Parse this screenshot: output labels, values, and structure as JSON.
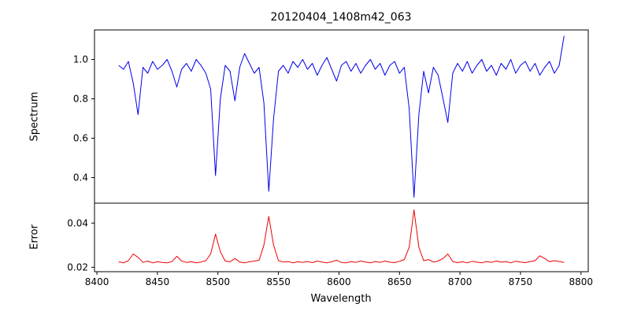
{
  "chart_data": {
    "type": "line",
    "title": "20120404_1408m42_063",
    "xlabel": "Wavelength",
    "xlim": [
      8398,
      8806
    ],
    "xticks": [
      8400,
      8450,
      8500,
      8550,
      8600,
      8650,
      8700,
      8750,
      8800
    ],
    "xticklabels": [
      "8400",
      "8450",
      "8500",
      "8550",
      "8600",
      "8650",
      "8700",
      "8750",
      "8800"
    ],
    "grid": false,
    "legend": "none",
    "x": [
      8418,
      8422,
      8426,
      8430,
      8434,
      8438,
      8442,
      8446,
      8450,
      8454,
      8458,
      8462,
      8466,
      8470,
      8474,
      8478,
      8482,
      8486,
      8490,
      8494,
      8498,
      8502,
      8506,
      8510,
      8514,
      8518,
      8522,
      8526,
      8530,
      8534,
      8538,
      8542,
      8546,
      8550,
      8554,
      8558,
      8562,
      8566,
      8570,
      8574,
      8578,
      8582,
      8586,
      8590,
      8594,
      8598,
      8602,
      8606,
      8610,
      8614,
      8618,
      8622,
      8626,
      8630,
      8634,
      8638,
      8642,
      8646,
      8650,
      8654,
      8658,
      8662,
      8666,
      8670,
      8674,
      8678,
      8682,
      8686,
      8690,
      8694,
      8698,
      8702,
      8706,
      8710,
      8714,
      8718,
      8722,
      8726,
      8730,
      8734,
      8738,
      8742,
      8746,
      8750,
      8754,
      8758,
      8762,
      8766,
      8770,
      8774,
      8778,
      8782,
      8786
    ],
    "panels": [
      {
        "ylabel": "Spectrum",
        "ylim": [
          0.27,
          1.15
        ],
        "yticks": [
          0.4,
          0.6,
          0.8,
          1.0
        ],
        "yticklabels": [
          "0.4",
          "0.6",
          "0.8",
          "1.0"
        ],
        "series": [
          {
            "name": "spectrum",
            "color": "#0000ee",
            "values": [
              0.97,
              0.95,
              0.99,
              0.88,
              0.72,
              0.96,
              0.93,
              0.99,
              0.95,
              0.97,
              1.0,
              0.94,
              0.86,
              0.95,
              0.98,
              0.94,
              1.0,
              0.97,
              0.93,
              0.85,
              0.41,
              0.8,
              0.97,
              0.94,
              0.79,
              0.96,
              1.03,
              0.98,
              0.93,
              0.96,
              0.78,
              0.33,
              0.7,
              0.94,
              0.97,
              0.93,
              0.99,
              0.96,
              1.0,
              0.95,
              0.98,
              0.92,
              0.97,
              1.01,
              0.95,
              0.89,
              0.97,
              0.99,
              0.94,
              0.98,
              0.93,
              0.97,
              1.0,
              0.95,
              0.98,
              0.92,
              0.97,
              0.99,
              0.93,
              0.96,
              0.75,
              0.3,
              0.72,
              0.94,
              0.83,
              0.96,
              0.92,
              0.8,
              0.68,
              0.93,
              0.98,
              0.94,
              0.99,
              0.93,
              0.97,
              1.0,
              0.94,
              0.97,
              0.92,
              0.98,
              0.95,
              1.0,
              0.93,
              0.97,
              0.99,
              0.94,
              0.98,
              0.92,
              0.96,
              0.99,
              0.93,
              0.97,
              1.12
            ]
          }
        ]
      },
      {
        "ylabel": "Error",
        "ylim": [
          0.018,
          0.049
        ],
        "yticks": [
          0.02,
          0.04
        ],
        "yticklabels": [
          "0.02",
          "0.04"
        ],
        "series": [
          {
            "name": "error",
            "color": "#ee0000",
            "values": [
              0.0225,
              0.022,
              0.023,
              0.026,
              0.0245,
              0.0222,
              0.0228,
              0.022,
              0.0225,
              0.0222,
              0.022,
              0.0226,
              0.025,
              0.0228,
              0.0222,
              0.0225,
              0.022,
              0.0224,
              0.023,
              0.026,
              0.035,
              0.027,
              0.0228,
              0.0225,
              0.024,
              0.0224,
              0.022,
              0.0225,
              0.0228,
              0.0232,
              0.03,
              0.043,
              0.03,
              0.023,
              0.0224,
              0.0226,
              0.022,
              0.0225,
              0.0222,
              0.0226,
              0.0221,
              0.0228,
              0.0224,
              0.022,
              0.0225,
              0.0232,
              0.0222,
              0.022,
              0.0226,
              0.0222,
              0.0228,
              0.0224,
              0.022,
              0.0226,
              0.0222,
              0.0228,
              0.0223,
              0.0221,
              0.0227,
              0.0235,
              0.029,
              0.046,
              0.029,
              0.023,
              0.0235,
              0.0224,
              0.0228,
              0.024,
              0.026,
              0.0226,
              0.0221,
              0.0225,
              0.022,
              0.0227,
              0.0223,
              0.022,
              0.0226,
              0.0222,
              0.0228,
              0.0223,
              0.0226,
              0.022,
              0.0227,
              0.0224,
              0.0221,
              0.0226,
              0.023,
              0.0252,
              0.024,
              0.0225,
              0.023,
              0.0226,
              0.0222
            ]
          }
        ]
      }
    ]
  }
}
